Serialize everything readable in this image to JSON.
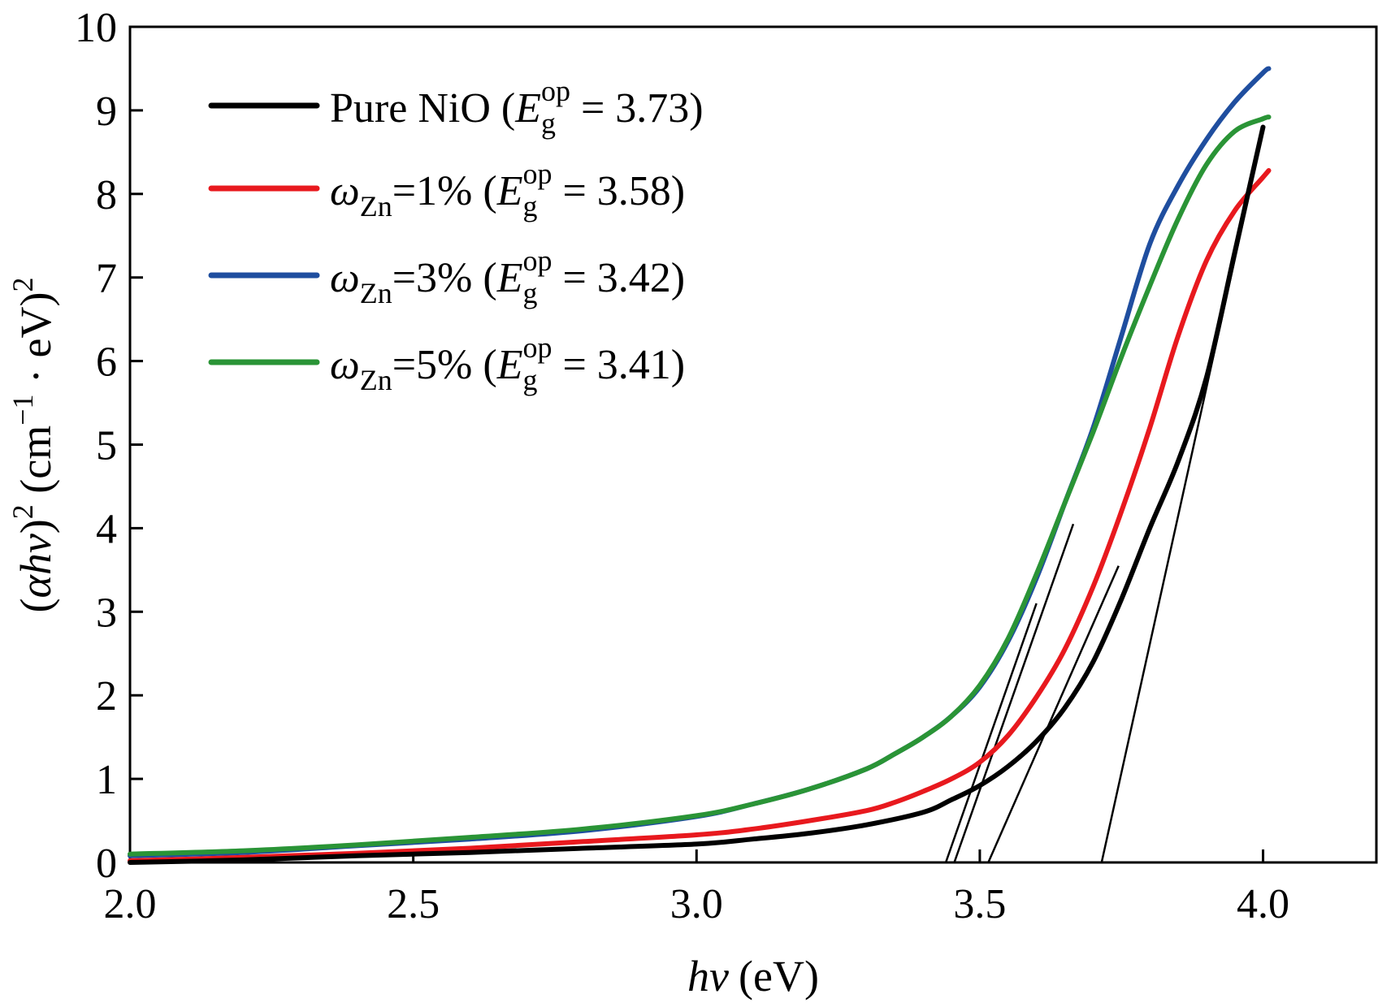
{
  "chart_data": {
    "type": "line",
    "xlabel_italic": "hv",
    "xlabel_unit": "(eV)",
    "ylabel": {
      "open": "(",
      "alpha_h_nu": "αhv",
      "close": ")",
      "sup2": "2",
      "unit_open": " (cm",
      "sup_minus1": "−1",
      "unit_mid": " · eV)",
      "sup2_unit": "2"
    },
    "xlim": [
      2.0,
      4.2
    ],
    "ylim": [
      0,
      10
    ],
    "x_ticks": [
      "2.0",
      "2.5",
      "3.0",
      "3.5",
      "4.0"
    ],
    "x_tick_values": [
      2.0,
      2.5,
      3.0,
      3.5,
      4.0
    ],
    "y_ticks": [
      "0",
      "1",
      "2",
      "3",
      "4",
      "5",
      "6",
      "7",
      "8",
      "9",
      "10"
    ],
    "y_tick_values": [
      0,
      1,
      2,
      3,
      4,
      5,
      6,
      7,
      8,
      9,
      10
    ],
    "grid": false,
    "legend_position": "top-left",
    "legend": [
      {
        "prefix": "Pure NiO",
        "omega": "",
        "sub": "",
        "pct": "",
        "eg_E": "E",
        "eg_sub": "g",
        "eg_sup": "op",
        "eg_value": " = 3.73)",
        "color": "#000000"
      },
      {
        "prefix": "",
        "omega": "ω",
        "sub": "Zn",
        "pct": "=1%",
        "eg_E": "E",
        "eg_sub": "g",
        "eg_sup": "op",
        "eg_value": " = 3.58)",
        "color": "#e8191e"
      },
      {
        "prefix": "",
        "omega": "ω",
        "sub": "Zn",
        "pct": "=3%",
        "eg_E": "E",
        "eg_sub": "g",
        "eg_sup": "op",
        "eg_value": " = 3.42)",
        "color": "#1f4e9f"
      },
      {
        "prefix": "",
        "omega": "ω",
        "sub": "Zn",
        "pct": "=5%",
        "eg_E": "E",
        "eg_sub": "g",
        "eg_sup": "op",
        "eg_value": " = 3.41)",
        "color": "#2a9436"
      }
    ],
    "series": [
      {
        "name": "Pure NiO",
        "color": "#000000",
        "x": [
          2.0,
          2.2,
          2.4,
          2.6,
          2.8,
          3.0,
          3.1,
          3.2,
          3.3,
          3.4,
          3.45,
          3.5,
          3.55,
          3.6,
          3.65,
          3.7,
          3.75,
          3.8,
          3.85,
          3.9,
          3.95,
          4.0
        ],
        "y": [
          0.0,
          0.03,
          0.08,
          0.12,
          0.17,
          0.22,
          0.28,
          0.35,
          0.45,
          0.6,
          0.75,
          0.92,
          1.15,
          1.45,
          1.85,
          2.4,
          3.15,
          4.0,
          4.8,
          5.8,
          7.3,
          8.8
        ]
      },
      {
        "name": "ωZn=1%",
        "color": "#e8191e",
        "x": [
          2.0,
          2.2,
          2.4,
          2.6,
          2.8,
          3.0,
          3.1,
          3.2,
          3.3,
          3.35,
          3.4,
          3.45,
          3.5,
          3.55,
          3.6,
          3.65,
          3.7,
          3.75,
          3.8,
          3.85,
          3.9,
          3.95,
          4.0,
          4.01
        ],
        "y": [
          0.02,
          0.06,
          0.11,
          0.17,
          0.25,
          0.33,
          0.4,
          0.5,
          0.62,
          0.72,
          0.85,
          1.0,
          1.2,
          1.52,
          1.98,
          2.55,
          3.3,
          4.2,
          5.2,
          6.3,
          7.2,
          7.8,
          8.2,
          8.28
        ]
      },
      {
        "name": "ωZn=3%",
        "color": "#1f4e9f",
        "x": [
          2.0,
          2.2,
          2.4,
          2.6,
          2.8,
          3.0,
          3.1,
          3.2,
          3.3,
          3.35,
          3.4,
          3.45,
          3.5,
          3.55,
          3.6,
          3.65,
          3.7,
          3.75,
          3.8,
          3.85,
          3.9,
          3.95,
          4.0,
          4.01
        ],
        "y": [
          0.08,
          0.12,
          0.2,
          0.28,
          0.38,
          0.55,
          0.7,
          0.88,
          1.12,
          1.3,
          1.5,
          1.75,
          2.1,
          2.65,
          3.4,
          4.3,
          5.2,
          6.3,
          7.4,
          8.1,
          8.65,
          9.1,
          9.45,
          9.5
        ]
      },
      {
        "name": "ωZn=5%",
        "color": "#2a9436",
        "x": [
          2.0,
          2.2,
          2.4,
          2.6,
          2.8,
          3.0,
          3.1,
          3.2,
          3.3,
          3.35,
          3.4,
          3.45,
          3.5,
          3.55,
          3.6,
          3.65,
          3.7,
          3.75,
          3.8,
          3.85,
          3.9,
          3.95,
          4.0,
          4.01
        ],
        "y": [
          0.1,
          0.14,
          0.21,
          0.3,
          0.4,
          0.56,
          0.7,
          0.88,
          1.12,
          1.3,
          1.5,
          1.75,
          2.12,
          2.68,
          3.45,
          4.3,
          5.15,
          6.05,
          6.9,
          7.7,
          8.35,
          8.75,
          8.9,
          8.92
        ]
      }
    ],
    "fit_lines": [
      {
        "x": [
          3.715,
          4.0
        ],
        "y": [
          0,
          8.75
        ],
        "color": "#000000"
      },
      {
        "x": [
          3.515,
          3.745
        ],
        "y": [
          0,
          3.55
        ],
        "color": "#000000"
      },
      {
        "x": [
          3.455,
          3.665
        ],
        "y": [
          0,
          4.05
        ],
        "color": "#000000"
      },
      {
        "x": [
          3.44,
          3.6
        ],
        "y": [
          0,
          3.1
        ],
        "color": "#000000"
      }
    ]
  }
}
